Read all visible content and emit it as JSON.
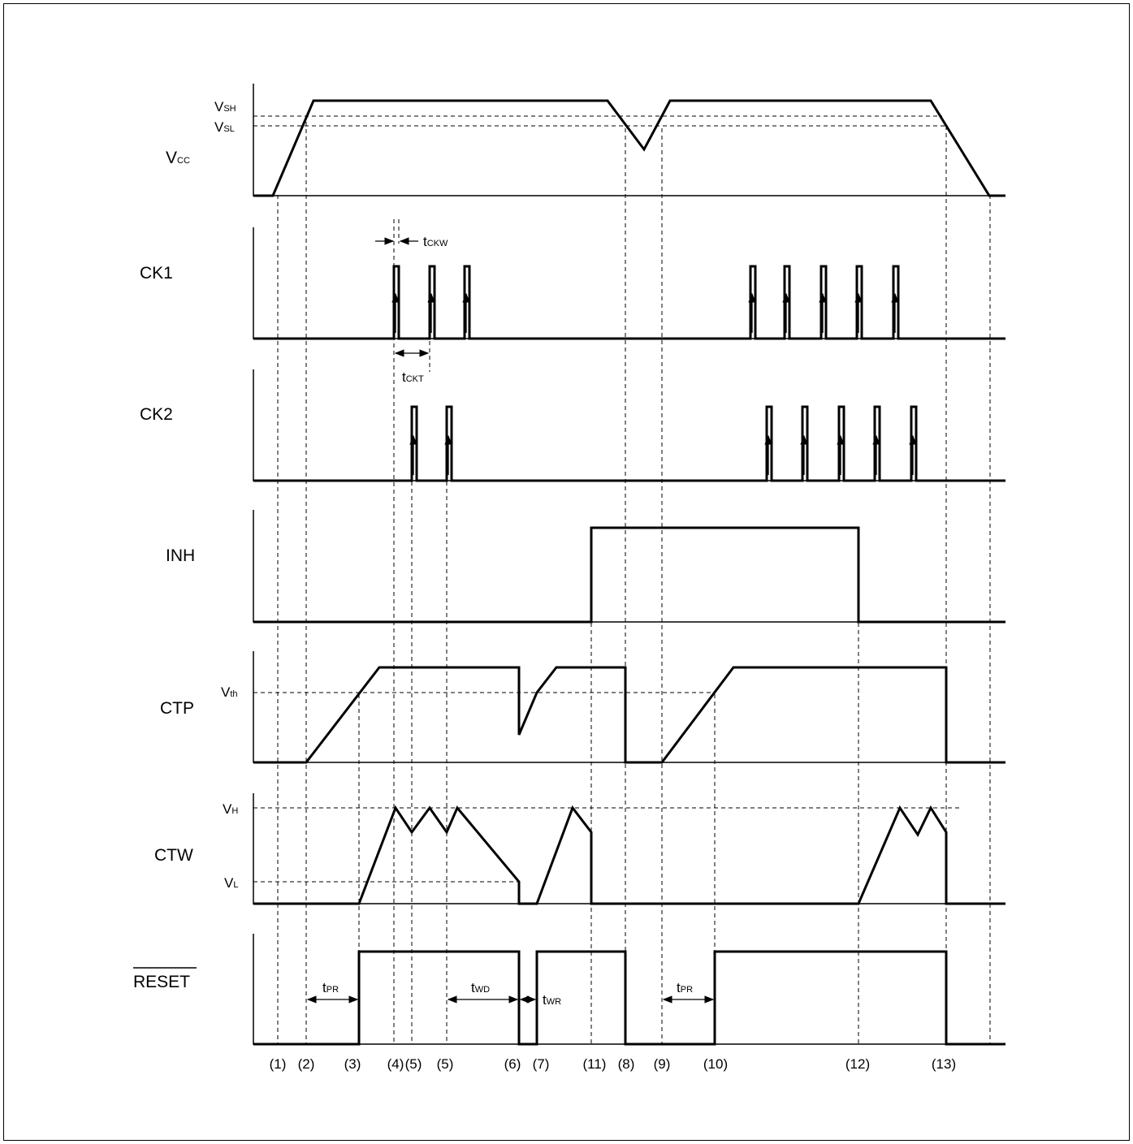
{
  "signals": {
    "vcc": {
      "main": "V",
      "sub": "CC"
    },
    "ck1": "CK1",
    "ck2": "CK2",
    "inh": "INH",
    "ctp": "CTP",
    "ctw": "CTW",
    "reset": "RESET"
  },
  "levels": {
    "vsh": {
      "main": "V",
      "sub": "SH"
    },
    "vsl": {
      "main": "V",
      "sub": "SL"
    },
    "vth": {
      "main": "V",
      "sub": "th"
    },
    "vh": {
      "main": "V",
      "sub": "H"
    },
    "vl": {
      "main": "V",
      "sub": "L"
    }
  },
  "timings": {
    "tckw": {
      "main": "t",
      "sub": "CKW"
    },
    "tckt": {
      "main": "t",
      "sub": "CKT"
    },
    "tpr1": {
      "main": "t",
      "sub": "PR"
    },
    "twd": {
      "main": "t",
      "sub": "WD"
    },
    "twr": {
      "main": "t",
      "sub": "WR"
    },
    "tpr2": {
      "main": "t",
      "sub": "PR"
    }
  },
  "events": [
    "(1)",
    "(2)",
    "(3)",
    "(4)",
    "(5)",
    "(5)",
    "(6)",
    "(7)",
    "(11)",
    "(8)",
    "(9)",
    "(10)",
    "(12)",
    "(13)"
  ]
}
